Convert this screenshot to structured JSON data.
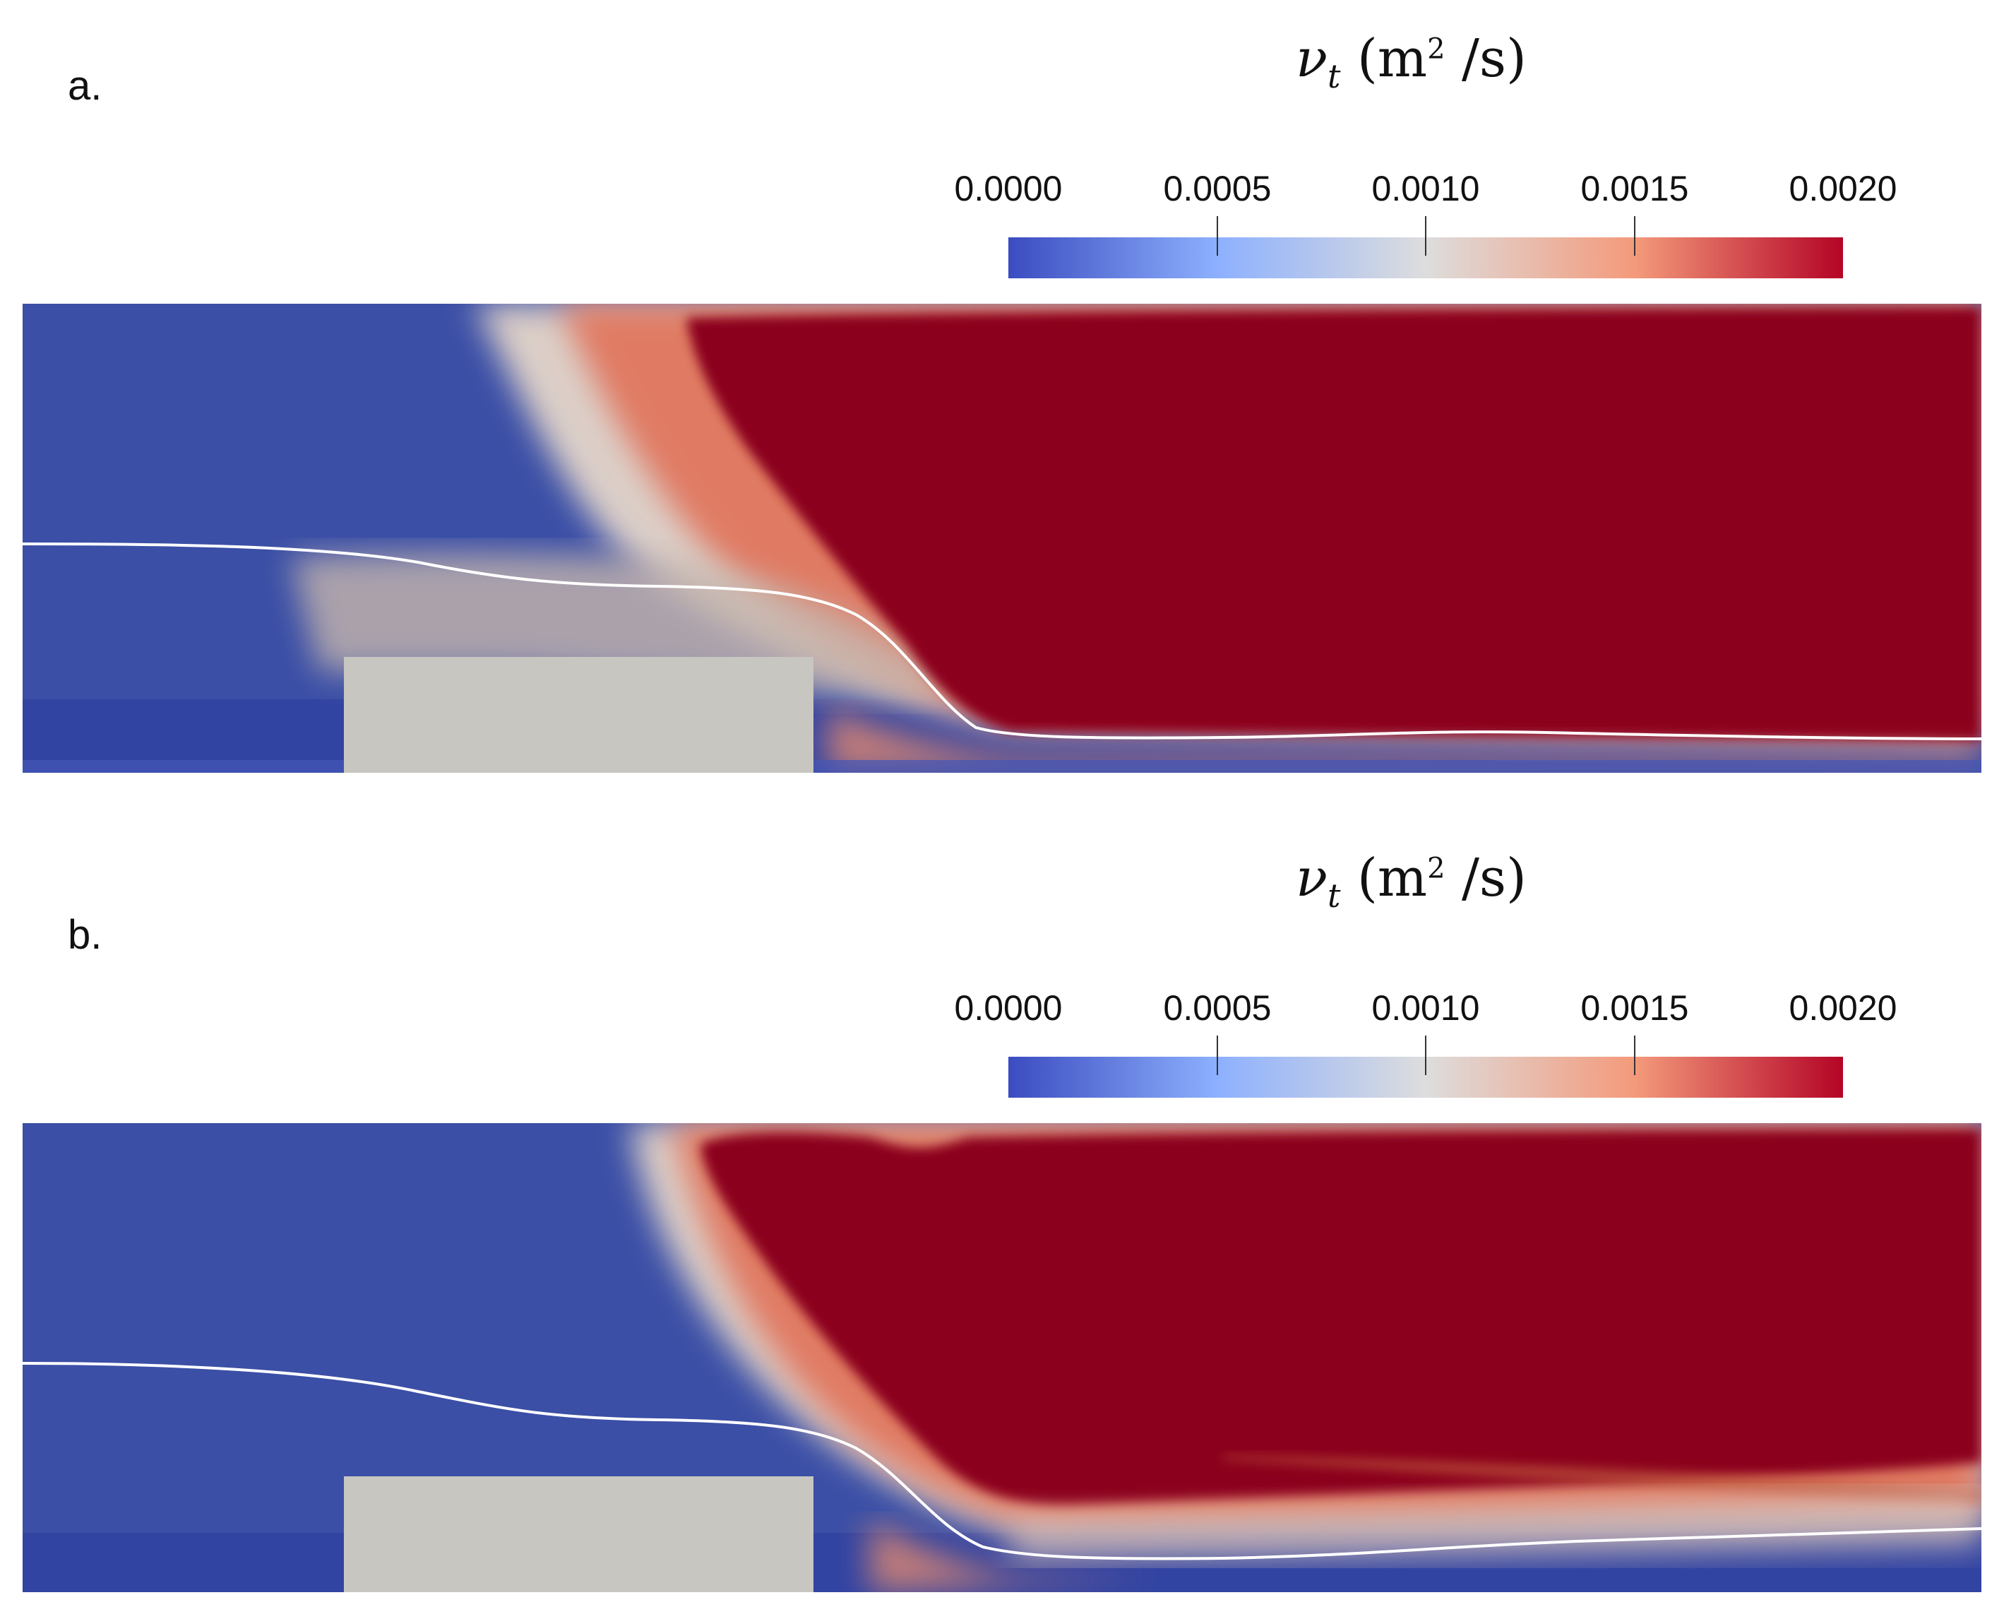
{
  "panels": [
    {
      "label": "a.",
      "colorbar": {
        "variable": "ν",
        "subscript": "t",
        "units_base": "(m",
        "units_exp": "2",
        "units_rest": " /s)",
        "tick_labels": [
          "0.0000",
          "0.0005",
          "0.0010",
          "0.0015",
          "0.0020"
        ]
      }
    },
    {
      "label": "b.",
      "colorbar": {
        "variable": "ν",
        "subscript": "t",
        "units_base": "(m",
        "units_exp": "2",
        "units_rest": " /s)",
        "tick_labels": [
          "0.0000",
          "0.0005",
          "0.0010",
          "0.0015",
          "0.0020"
        ]
      }
    }
  ],
  "colors": {
    "low": "#3b4cc0",
    "mid": "#dddddd",
    "high": "#b40426",
    "saturated": "#8b001c",
    "obstacle": "#c8c6c1",
    "interface_line": "#ffffff"
  }
}
